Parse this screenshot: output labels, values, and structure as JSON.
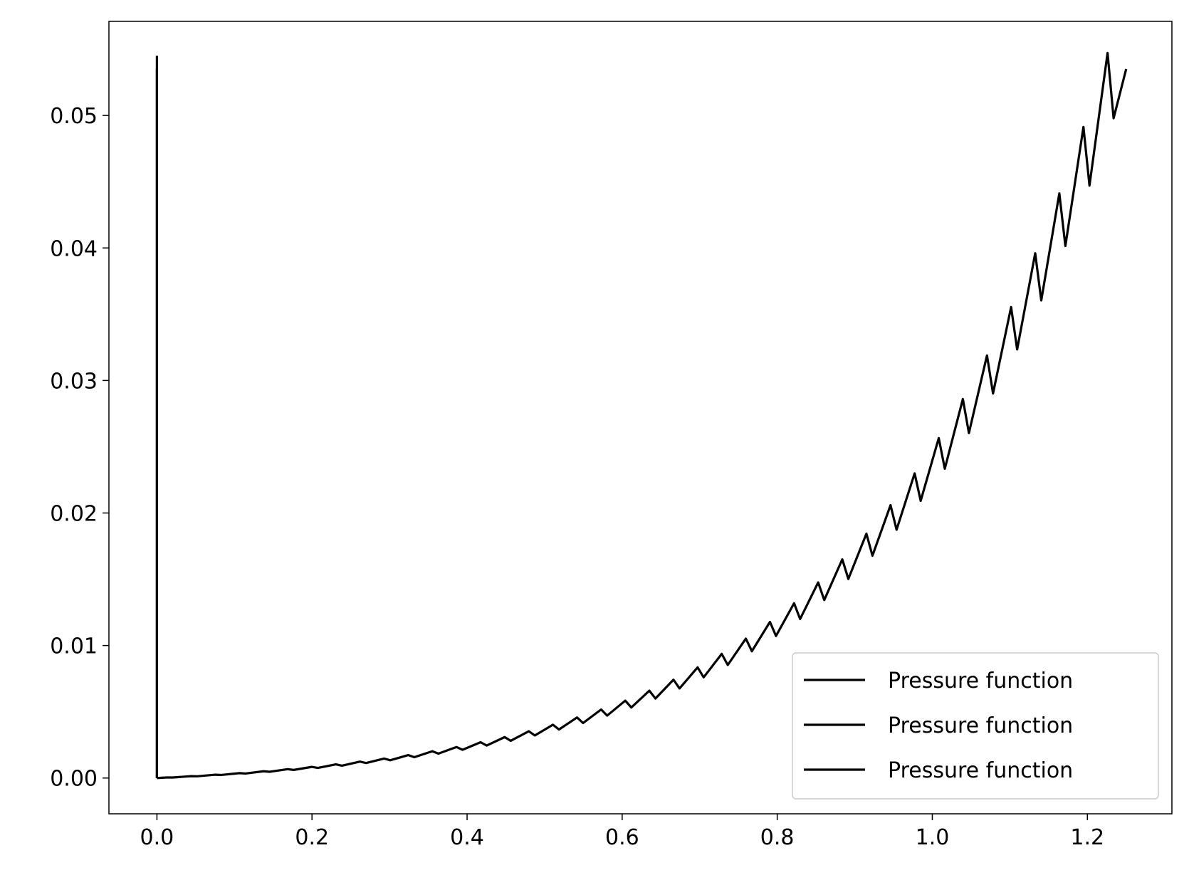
{
  "chart_data": {
    "type": "line",
    "series": [
      {
        "name": "Pressure function",
        "color": "#000000",
        "x": [
          0,
          0
        ],
        "values": [
          0,
          0.0545
        ]
      },
      {
        "name": "Pressure function",
        "color": "#000000",
        "x": [
          0,
          0.0131,
          0.0209,
          0.0442,
          0.052,
          0.0753,
          0.0831,
          0.1064,
          0.1142,
          0.1375,
          0.1453,
          0.1686,
          0.1764,
          0.1997,
          0.2075,
          0.2308,
          0.2386,
          0.2619,
          0.2697,
          0.293,
          0.3008,
          0.3241,
          0.3319,
          0.3552,
          0.363,
          0.3863,
          0.3941,
          0.4174,
          0.4252,
          0.4485,
          0.4563,
          0.4796,
          0.4874,
          0.5107,
          0.5185,
          0.5418,
          0.5496,
          0.5729,
          0.5807,
          0.604,
          0.6118,
          0.6351,
          0.6429,
          0.6662,
          0.674,
          0.6973,
          0.7051,
          0.7284,
          0.7362,
          0.7595,
          0.7673,
          0.7906,
          0.7984,
          0.8217,
          0.8295,
          0.8528,
          0.8606,
          0.8839,
          0.8917,
          0.915,
          0.9228,
          0.9461,
          0.9539,
          0.9772,
          0.985,
          1.0083,
          1.0161,
          1.0394,
          1.0472,
          1.0705,
          1.0783,
          1.1016,
          1.1094,
          1.1327,
          1.1405,
          1.1638,
          1.1716,
          1.1949,
          1.2027,
          1.226,
          1.2338,
          1.25
        ],
        "values": [
          0,
          4e-05,
          4e-05,
          0.00014,
          0.00013,
          0.00025,
          0.00023,
          0.00037,
          0.00034,
          0.00051,
          0.00047,
          0.00067,
          0.00061,
          0.00084,
          0.00076,
          0.00103,
          0.00093,
          0.00124,
          0.00113,
          0.00147,
          0.00134,
          0.00173,
          0.00157,
          0.00202,
          0.00184,
          0.00234,
          0.00213,
          0.0027,
          0.00245,
          0.00309,
          0.00281,
          0.00353,
          0.00321,
          0.00402,
          0.00366,
          0.00457,
          0.00415,
          0.00517,
          0.00471,
          0.00584,
          0.00532,
          0.00659,
          0.006,
          0.00742,
          0.00676,
          0.00835,
          0.0076,
          0.00937,
          0.00853,
          0.01052,
          0.00957,
          0.01178,
          0.01072,
          0.01319,
          0.012,
          0.01476,
          0.01343,
          0.0165,
          0.01502,
          0.01844,
          0.01678,
          0.02059,
          0.01874,
          0.02299,
          0.02092,
          0.02565,
          0.02334,
          0.0286,
          0.02603,
          0.03189,
          0.02902,
          0.03554,
          0.03234,
          0.0396,
          0.03604,
          0.04412,
          0.04015,
          0.04913,
          0.04471,
          0.05471,
          0.04979,
          0.0535
        ]
      },
      {
        "name": "Pressure function",
        "color": "#000000",
        "x": [
          0,
          0
        ],
        "values": [
          0,
          0.0535
        ]
      }
    ],
    "xlim": [
      -0.0619,
      1.309
    ],
    "xticks": [
      {
        "value": 0,
        "label": "0.0"
      },
      0.2,
      0.4,
      0.6,
      0.8,
      {
        "value": 1,
        "label": "1.0"
      },
      1.2
    ],
    "ylim": [
      -0.0027,
      0.0571
    ],
    "yticks": [
      {
        "value": 0,
        "label": "0.00"
      },
      0.01,
      0.02,
      0.03,
      0.04,
      0.05
    ],
    "legend": "lower right"
  }
}
